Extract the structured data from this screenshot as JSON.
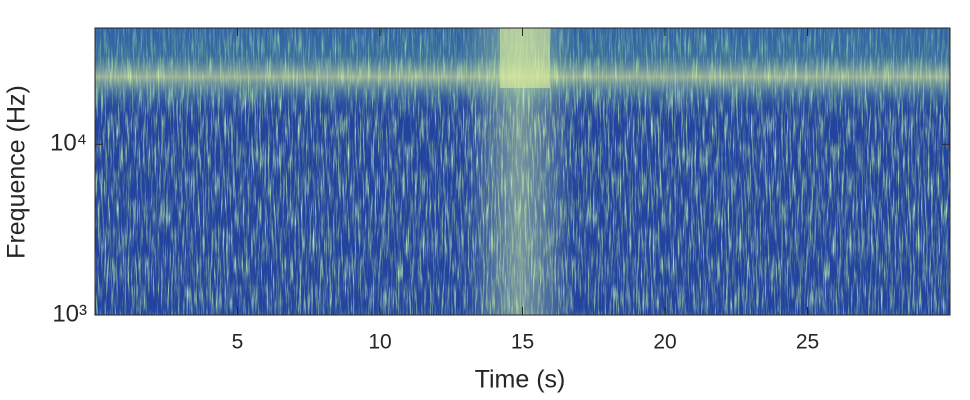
{
  "chart_data": {
    "type": "spectrogram",
    "xlabel": "Time (s)",
    "ylabel": "Frequence (Hz)",
    "xlim": [
      0,
      30
    ],
    "xticks": [
      5,
      10,
      15,
      20,
      25
    ],
    "ylim": [
      1000,
      48000
    ],
    "yscale": "log",
    "yticks": [
      {
        "value": 1000,
        "label": "10³"
      },
      {
        "value": 10000,
        "label": "10⁴"
      }
    ]
  }
}
